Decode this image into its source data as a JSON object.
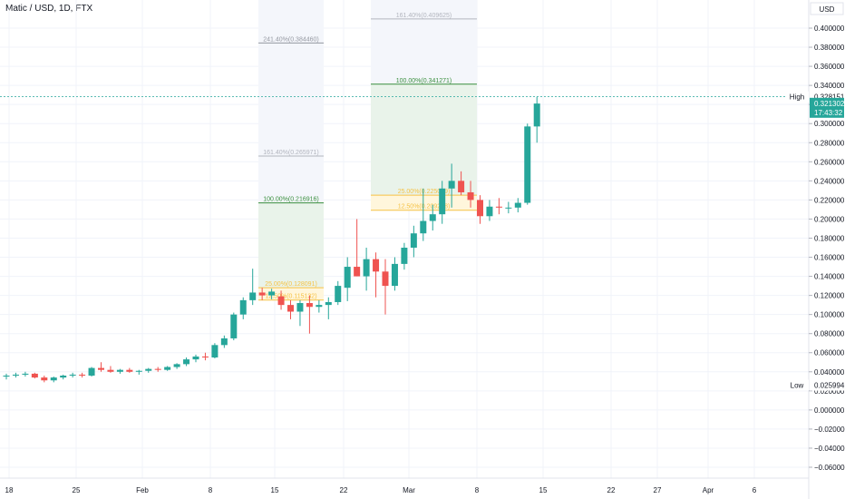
{
  "header": {
    "symbol_title": "Matic / USD, 1D, FTX"
  },
  "price_axis": {
    "currency": "USD",
    "ticks": [
      "0.400000",
      "0.380000",
      "0.360000",
      "0.340000",
      "0.320000",
      "0.300000",
      "0.280000",
      "0.260000",
      "0.240000",
      "0.220000",
      "0.200000",
      "0.180000",
      "0.160000",
      "0.140000",
      "0.120000",
      "0.100000",
      "0.080000",
      "0.060000",
      "0.040000",
      "0.020000",
      "0.000000",
      "−0.020000",
      "−0.040000",
      "−0.060000"
    ],
    "high_label": "High",
    "high_value": "0.328151",
    "low_label": "Low",
    "low_value": "0.025994",
    "last_price": "0.321302",
    "countdown": "17:43:32"
  },
  "time_axis": {
    "ticks": [
      "18",
      "25",
      "Feb",
      "8",
      "15",
      "22",
      "Mar",
      "8",
      "15",
      "22",
      "27",
      "Apr",
      "6"
    ]
  },
  "fib_tools": [
    {
      "levels": [
        {
          "text": "241.40%(0.384460)",
          "value": 0.38446,
          "color": "#9598a1"
        },
        {
          "text": "161.40%(0.265971)",
          "value": 0.265971,
          "color": "#b2b5be"
        },
        {
          "text": "100.00%(0.216916)",
          "value": 0.216916,
          "color": "#388e3c"
        },
        {
          "text": "25.00%(0.128091)",
          "value": 0.128091,
          "color": "#f6c244"
        },
        {
          "text": "12.50%(0.115132)",
          "value": 0.115132,
          "color": "#f6c244"
        }
      ]
    },
    {
      "levels": [
        {
          "text": "161.40%(0.409625)",
          "value": 0.409625,
          "color": "#b2b5be"
        },
        {
          "text": "100.00%(0.341271)",
          "value": 0.341271,
          "color": "#388e3c"
        },
        {
          "text": "25.00%(0.225059)",
          "value": 0.225059,
          "color": "#f6c244"
        },
        {
          "text": "12.50%(0.209208)",
          "value": 0.209208,
          "color": "#f6c244"
        }
      ]
    }
  ],
  "colors": {
    "up": "#26a69a",
    "down": "#ef5350",
    "grid": "#f0f3fa",
    "high_line": "#26a69a"
  },
  "chart_data": {
    "type": "candlestick",
    "title": "Matic / USD, 1D, FTX",
    "ylim": [
      -0.07,
      0.425
    ],
    "grid": true,
    "candles": [
      {
        "o": 0.035,
        "h": 0.038,
        "l": 0.032,
        "c": 0.036
      },
      {
        "o": 0.036,
        "h": 0.039,
        "l": 0.034,
        "c": 0.037
      },
      {
        "o": 0.037,
        "h": 0.04,
        "l": 0.035,
        "c": 0.038
      },
      {
        "o": 0.038,
        "h": 0.039,
        "l": 0.033,
        "c": 0.034
      },
      {
        "o": 0.034,
        "h": 0.036,
        "l": 0.029,
        "c": 0.031
      },
      {
        "o": 0.031,
        "h": 0.035,
        "l": 0.029,
        "c": 0.034
      },
      {
        "o": 0.034,
        "h": 0.037,
        "l": 0.032,
        "c": 0.036
      },
      {
        "o": 0.036,
        "h": 0.039,
        "l": 0.034,
        "c": 0.037
      },
      {
        "o": 0.037,
        "h": 0.039,
        "l": 0.034,
        "c": 0.036
      },
      {
        "o": 0.036,
        "h": 0.045,
        "l": 0.035,
        "c": 0.044
      },
      {
        "o": 0.044,
        "h": 0.05,
        "l": 0.04,
        "c": 0.042
      },
      {
        "o": 0.042,
        "h": 0.046,
        "l": 0.039,
        "c": 0.04
      },
      {
        "o": 0.04,
        "h": 0.043,
        "l": 0.038,
        "c": 0.042
      },
      {
        "o": 0.042,
        "h": 0.044,
        "l": 0.039,
        "c": 0.04
      },
      {
        "o": 0.04,
        "h": 0.042,
        "l": 0.037,
        "c": 0.041
      },
      {
        "o": 0.041,
        "h": 0.044,
        "l": 0.039,
        "c": 0.043
      },
      {
        "o": 0.043,
        "h": 0.045,
        "l": 0.04,
        "c": 0.042
      },
      {
        "o": 0.042,
        "h": 0.046,
        "l": 0.041,
        "c": 0.045
      },
      {
        "o": 0.045,
        "h": 0.049,
        "l": 0.043,
        "c": 0.048
      },
      {
        "o": 0.048,
        "h": 0.055,
        "l": 0.046,
        "c": 0.053
      },
      {
        "o": 0.053,
        "h": 0.058,
        "l": 0.05,
        "c": 0.056
      },
      {
        "o": 0.056,
        "h": 0.06,
        "l": 0.052,
        "c": 0.055
      },
      {
        "o": 0.055,
        "h": 0.07,
        "l": 0.054,
        "c": 0.068
      },
      {
        "o": 0.068,
        "h": 0.078,
        "l": 0.065,
        "c": 0.075
      },
      {
        "o": 0.075,
        "h": 0.102,
        "l": 0.073,
        "c": 0.1
      },
      {
        "o": 0.1,
        "h": 0.118,
        "l": 0.095,
        "c": 0.115
      },
      {
        "o": 0.115,
        "h": 0.148,
        "l": 0.11,
        "c": 0.123
      },
      {
        "o": 0.123,
        "h": 0.128,
        "l": 0.115,
        "c": 0.12
      },
      {
        "o": 0.12,
        "h": 0.127,
        "l": 0.116,
        "c": 0.124
      },
      {
        "o": 0.119,
        "h": 0.125,
        "l": 0.105,
        "c": 0.11
      },
      {
        "o": 0.11,
        "h": 0.115,
        "l": 0.095,
        "c": 0.103
      },
      {
        "o": 0.103,
        "h": 0.115,
        "l": 0.088,
        "c": 0.112
      },
      {
        "o": 0.112,
        "h": 0.12,
        "l": 0.08,
        "c": 0.108
      },
      {
        "o": 0.108,
        "h": 0.115,
        "l": 0.102,
        "c": 0.11
      },
      {
        "o": 0.11,
        "h": 0.118,
        "l": 0.095,
        "c": 0.113
      },
      {
        "o": 0.113,
        "h": 0.135,
        "l": 0.11,
        "c": 0.13
      },
      {
        "o": 0.128,
        "h": 0.16,
        "l": 0.114,
        "c": 0.15
      },
      {
        "o": 0.15,
        "h": 0.2,
        "l": 0.14,
        "c": 0.14
      },
      {
        "o": 0.14,
        "h": 0.17,
        "l": 0.125,
        "c": 0.158
      },
      {
        "o": 0.158,
        "h": 0.165,
        "l": 0.118,
        "c": 0.145
      },
      {
        "o": 0.145,
        "h": 0.158,
        "l": 0.1,
        "c": 0.13
      },
      {
        "o": 0.13,
        "h": 0.16,
        "l": 0.125,
        "c": 0.153
      },
      {
        "o": 0.153,
        "h": 0.175,
        "l": 0.147,
        "c": 0.17
      },
      {
        "o": 0.17,
        "h": 0.193,
        "l": 0.16,
        "c": 0.185
      },
      {
        "o": 0.185,
        "h": 0.232,
        "l": 0.177,
        "c": 0.198
      },
      {
        "o": 0.198,
        "h": 0.215,
        "l": 0.188,
        "c": 0.205
      },
      {
        "o": 0.205,
        "h": 0.24,
        "l": 0.195,
        "c": 0.232
      },
      {
        "o": 0.232,
        "h": 0.258,
        "l": 0.212,
        "c": 0.24
      },
      {
        "o": 0.24,
        "h": 0.25,
        "l": 0.225,
        "c": 0.228
      },
      {
        "o": 0.228,
        "h": 0.24,
        "l": 0.212,
        "c": 0.22
      },
      {
        "o": 0.22,
        "h": 0.225,
        "l": 0.195,
        "c": 0.203
      },
      {
        "o": 0.203,
        "h": 0.22,
        "l": 0.198,
        "c": 0.213
      },
      {
        "o": 0.213,
        "h": 0.222,
        "l": 0.205,
        "c": 0.212
      },
      {
        "o": 0.212,
        "h": 0.218,
        "l": 0.206,
        "c": 0.212
      },
      {
        "o": 0.212,
        "h": 0.222,
        "l": 0.207,
        "c": 0.217
      },
      {
        "o": 0.217,
        "h": 0.3,
        "l": 0.215,
        "c": 0.297
      },
      {
        "o": 0.297,
        "h": 0.328,
        "l": 0.28,
        "c": 0.321
      }
    ]
  }
}
